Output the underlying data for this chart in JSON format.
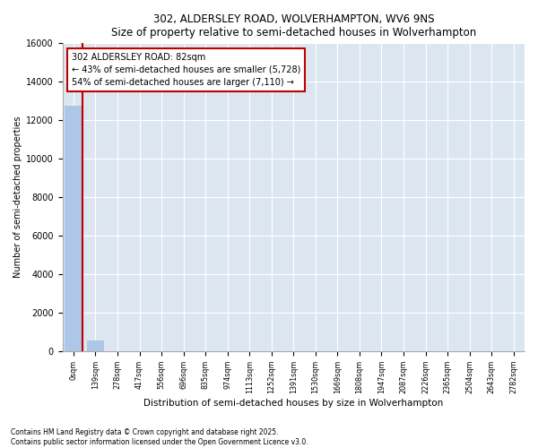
{
  "title": "302, ALDERSLEY ROAD, WOLVERHAMPTON, WV6 9NS",
  "subtitle": "Size of property relative to semi-detached houses in Wolverhampton",
  "xlabel": "Distribution of semi-detached houses by size in Wolverhampton",
  "ylabel": "Number of semi-detached properties",
  "annotation_title": "302 ALDERSLEY ROAD: 82sqm",
  "annotation_line1": "← 43% of semi-detached houses are smaller (5,728)",
  "annotation_line2": "54% of semi-detached houses are larger (7,110) →",
  "footer_line1": "Contains HM Land Registry data © Crown copyright and database right 2025.",
  "footer_line2": "Contains public sector information licensed under the Open Government Licence v3.0.",
  "bar_color": "#aec6e8",
  "highlight_color": "#c00000",
  "background_color": "#dce6f0",
  "categories": [
    "0sqm",
    "139sqm",
    "278sqm",
    "417sqm",
    "556sqm",
    "696sqm",
    "835sqm",
    "974sqm",
    "1113sqm",
    "1252sqm",
    "1391sqm",
    "1530sqm",
    "1669sqm",
    "1808sqm",
    "1947sqm",
    "2087sqm",
    "2226sqm",
    "2365sqm",
    "2504sqm",
    "2643sqm",
    "2782sqm"
  ],
  "values": [
    12780,
    580,
    0,
    0,
    0,
    0,
    0,
    0,
    0,
    0,
    0,
    0,
    0,
    0,
    0,
    0,
    0,
    0,
    0,
    0,
    0
  ],
  "ylim": [
    0,
    16000
  ],
  "yticks": [
    0,
    2000,
    4000,
    6000,
    8000,
    10000,
    12000,
    14000,
    16000
  ]
}
